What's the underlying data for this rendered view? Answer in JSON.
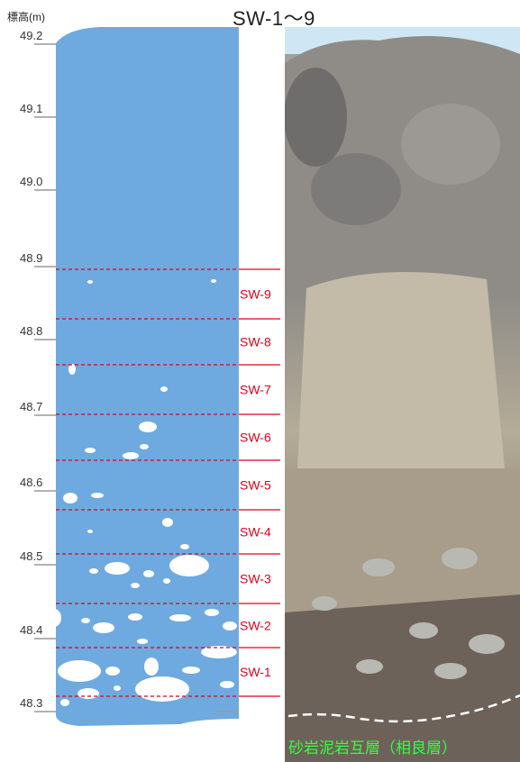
{
  "axis": {
    "label": "標高(m)",
    "ticks": [
      "49.2",
      "49.1",
      "49.0",
      "48.9",
      "48.8",
      "48.7",
      "48.6",
      "48.5",
      "48.4",
      "48.3"
    ]
  },
  "title": "SW-1～9",
  "samples": [
    "SW-9",
    "SW-8",
    "SW-7",
    "SW-6",
    "SW-5",
    "SW-4",
    "SW-3",
    "SW-2",
    "SW-1"
  ],
  "photo_label": "砂岩泥岩互層（相良層）",
  "colors": {
    "column_fill": "#6eaadf",
    "sample_line": "#e0001b",
    "label_green": "#33ff44"
  }
}
